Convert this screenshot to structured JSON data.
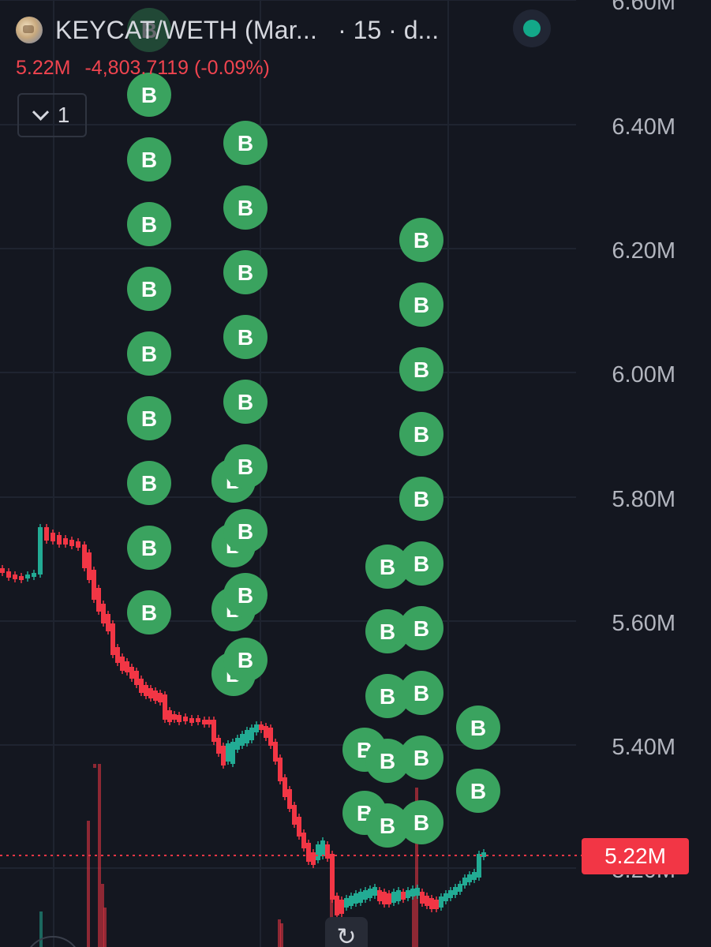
{
  "header": {
    "symbol": "KEYCAT/WETH (Mar...",
    "interval": "· 15 · d...",
    "last_price": "5.22M",
    "change": "-4,803.7119 (-0.09%)",
    "collapse_count": "1"
  },
  "price_axis": {
    "ticks": [
      "6.60M",
      "6.40M",
      "6.20M",
      "6.00M",
      "5.80M",
      "5.60M",
      "5.40M",
      "5.20M"
    ],
    "current_price_label": "5.22M"
  },
  "colors": {
    "up": "#22ab94",
    "down": "#f23645",
    "buy_marker": "#3aa35f",
    "background": "#141720"
  },
  "markers": {
    "label": "B"
  },
  "controls": {
    "reset_icon": "↻"
  }
}
